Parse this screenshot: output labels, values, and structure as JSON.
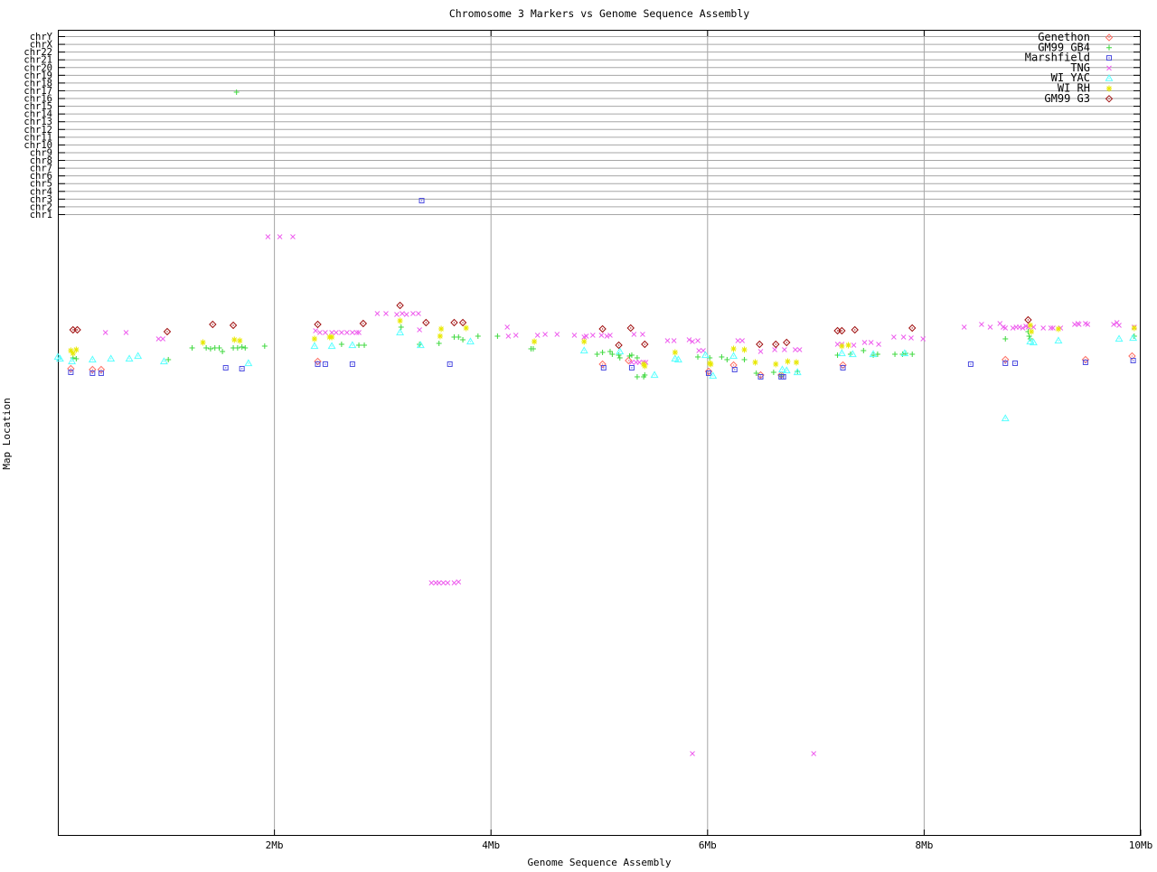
{
  "chart_data": {
    "type": "scatter",
    "title": "Chromosome 3 Markers vs Genome Sequence Assembly",
    "xlabel": "Genome Sequence Assembly",
    "ylabel": "Map Location",
    "x_unit": "Mb",
    "xlim": [
      0,
      10
    ],
    "x_ticks": [
      {
        "label": "2Mb",
        "mb": 2
      },
      {
        "label": "4Mb",
        "mb": 4
      },
      {
        "label": "6Mb",
        "mb": 6
      },
      {
        "label": "8Mb",
        "mb": 8
      },
      {
        "label": "10Mb",
        "mb": 10
      }
    ],
    "y_tick_labels": [
      "chrY",
      "chrX",
      "chr22",
      "chr21",
      "chr20",
      "chr19",
      "chr18",
      "chr17",
      "chr16",
      "chr15",
      "chr14",
      "chr13",
      "chr12",
      "chr11",
      "chr10",
      "chr9",
      "chr8",
      "chr7",
      "chr6",
      "chr5",
      "chr4",
      "chr3",
      "chr2",
      "chr1"
    ],
    "grid": true,
    "legend_position": "top-right-inside",
    "y_note": "y values are vertical screen pixel positions; the map-location scale has no numeric labels in the source image",
    "colors": {
      "background": "#ffffff",
      "grid": "#a6a6a6",
      "axis": "#000000",
      "text": "#000000"
    },
    "series": [
      {
        "name": "Genethon",
        "color": "#ff6e63",
        "marker": "diamond",
        "points": [
          [
            0.12,
            408
          ],
          [
            0.32,
            409
          ],
          [
            0.4,
            409
          ],
          [
            2.4,
            400
          ],
          [
            5.03,
            403
          ],
          [
            5.27,
            399
          ],
          [
            6.01,
            411
          ],
          [
            6.24,
            404
          ],
          [
            6.49,
            415
          ],
          [
            6.68,
            415
          ],
          [
            7.25,
            404
          ],
          [
            8.75,
            398
          ],
          [
            9.49,
            398
          ],
          [
            9.92,
            394
          ]
        ]
      },
      {
        "name": "GM99 GB4",
        "color": "#3ed83e",
        "marker": "plus",
        "points": [
          [
            0.14,
            396
          ],
          [
            0.17,
            397
          ],
          [
            1.02,
            398
          ],
          [
            1.24,
            385
          ],
          [
            1.37,
            385
          ],
          [
            1.41,
            386
          ],
          [
            1.45,
            385
          ],
          [
            1.49,
            385
          ],
          [
            1.52,
            389
          ],
          [
            1.62,
            385
          ],
          [
            1.65,
            102
          ],
          [
            1.66,
            385
          ],
          [
            1.7,
            384
          ],
          [
            1.73,
            385
          ],
          [
            1.91,
            383
          ],
          [
            2.62,
            381
          ],
          [
            2.78,
            382
          ],
          [
            2.83,
            382
          ],
          [
            3.17,
            362
          ],
          [
            3.34,
            381
          ],
          [
            3.52,
            380
          ],
          [
            3.66,
            373
          ],
          [
            3.7,
            373
          ],
          [
            3.74,
            376
          ],
          [
            3.88,
            372
          ],
          [
            4.06,
            372
          ],
          [
            4.37,
            386
          ],
          [
            4.39,
            386
          ],
          [
            4.98,
            392
          ],
          [
            5.03,
            390
          ],
          [
            5.1,
            389
          ],
          [
            5.12,
            392
          ],
          [
            5.18,
            393
          ],
          [
            5.19,
            396
          ],
          [
            5.28,
            394
          ],
          [
            5.3,
            393
          ],
          [
            5.35,
            396
          ],
          [
            5.35,
            417
          ],
          [
            5.41,
            417
          ],
          [
            5.42,
            415
          ],
          [
            5.91,
            395
          ],
          [
            6.02,
            396
          ],
          [
            6.13,
            395
          ],
          [
            6.18,
            398
          ],
          [
            6.34,
            398
          ],
          [
            6.45,
            413
          ],
          [
            6.61,
            412
          ],
          [
            6.68,
            416
          ],
          [
            6.83,
            411
          ],
          [
            7.2,
            393
          ],
          [
            7.32,
            392
          ],
          [
            7.44,
            388
          ],
          [
            7.53,
            393
          ],
          [
            7.57,
            392
          ],
          [
            7.73,
            392
          ],
          [
            7.8,
            392
          ],
          [
            7.83,
            391
          ],
          [
            7.89,
            392
          ],
          [
            8.75,
            375
          ],
          [
            8.96,
            367
          ],
          [
            8.97,
            372
          ],
          [
            8.98,
            375
          ],
          [
            9.94,
            372
          ]
        ]
      },
      {
        "name": "Marshfield",
        "color": "#4d4de0",
        "marker": "box",
        "points": [
          [
            0.12,
            412
          ],
          [
            0.32,
            413
          ],
          [
            0.4,
            413
          ],
          [
            1.55,
            407
          ],
          [
            1.7,
            408
          ],
          [
            2.4,
            403
          ],
          [
            2.47,
            403
          ],
          [
            2.72,
            403
          ],
          [
            3.36,
            222
          ],
          [
            3.62,
            403
          ],
          [
            5.04,
            407
          ],
          [
            5.3,
            407
          ],
          [
            6.01,
            413
          ],
          [
            6.25,
            409
          ],
          [
            6.49,
            417
          ],
          [
            6.68,
            417
          ],
          [
            6.7,
            417
          ],
          [
            7.25,
            407
          ],
          [
            8.43,
            403
          ],
          [
            8.75,
            402
          ],
          [
            8.84,
            402
          ],
          [
            9.49,
            401
          ],
          [
            9.93,
            399
          ]
        ]
      },
      {
        "name": "TNG",
        "color": "#ee5fee",
        "marker": "cross",
        "points": [
          [
            0.44,
            368
          ],
          [
            0.63,
            368
          ],
          [
            0.93,
            375
          ],
          [
            0.97,
            375
          ],
          [
            1.94,
            262
          ],
          [
            2.05,
            262
          ],
          [
            2.17,
            262
          ],
          [
            2.38,
            366
          ],
          [
            2.42,
            368
          ],
          [
            2.47,
            368
          ],
          [
            2.53,
            368
          ],
          [
            2.57,
            368
          ],
          [
            2.62,
            368
          ],
          [
            2.67,
            368
          ],
          [
            2.72,
            368
          ],
          [
            2.76,
            368
          ],
          [
            2.78,
            368
          ],
          [
            2.95,
            347
          ],
          [
            3.03,
            347
          ],
          [
            3.13,
            348
          ],
          [
            3.18,
            347
          ],
          [
            3.22,
            348
          ],
          [
            3.28,
            347
          ],
          [
            3.33,
            347
          ],
          [
            3.34,
            365
          ],
          [
            3.45,
            645
          ],
          [
            3.49,
            645
          ],
          [
            3.52,
            645
          ],
          [
            3.56,
            645
          ],
          [
            3.6,
            645
          ],
          [
            3.66,
            645
          ],
          [
            3.7,
            644
          ],
          [
            4.15,
            362
          ],
          [
            4.16,
            372
          ],
          [
            4.23,
            371
          ],
          [
            4.43,
            371
          ],
          [
            4.5,
            370
          ],
          [
            4.61,
            370
          ],
          [
            4.77,
            371
          ],
          [
            4.86,
            373
          ],
          [
            4.88,
            372
          ],
          [
            4.94,
            371
          ],
          [
            5.02,
            371
          ],
          [
            5.07,
            372
          ],
          [
            5.1,
            371
          ],
          [
            5.3,
            401
          ],
          [
            5.32,
            370
          ],
          [
            5.34,
            401
          ],
          [
            5.37,
            401
          ],
          [
            5.4,
            370
          ],
          [
            5.41,
            401
          ],
          [
            5.43,
            401
          ],
          [
            5.63,
            377
          ],
          [
            5.69,
            377
          ],
          [
            5.83,
            376
          ],
          [
            5.86,
            378
          ],
          [
            5.86,
            834
          ],
          [
            5.91,
            377
          ],
          [
            5.92,
            388
          ],
          [
            5.96,
            388
          ],
          [
            6.28,
            377
          ],
          [
            6.32,
            377
          ],
          [
            6.49,
            389
          ],
          [
            6.62,
            387
          ],
          [
            6.71,
            387
          ],
          [
            6.81,
            387
          ],
          [
            6.85,
            387
          ],
          [
            6.98,
            834
          ],
          [
            7.2,
            381
          ],
          [
            7.24,
            381
          ],
          [
            7.35,
            382
          ],
          [
            7.45,
            379
          ],
          [
            7.51,
            379
          ],
          [
            7.58,
            381
          ],
          [
            7.72,
            373
          ],
          [
            7.81,
            373
          ],
          [
            7.88,
            374
          ],
          [
            7.99,
            375
          ],
          [
            8.37,
            362
          ],
          [
            8.53,
            359
          ],
          [
            8.61,
            362
          ],
          [
            8.7,
            358
          ],
          [
            8.73,
            362
          ],
          [
            8.75,
            363
          ],
          [
            8.82,
            363
          ],
          [
            8.85,
            362
          ],
          [
            8.88,
            362
          ],
          [
            8.91,
            363
          ],
          [
            8.94,
            361
          ],
          [
            8.96,
            362
          ],
          [
            9.01,
            362
          ],
          [
            9.1,
            363
          ],
          [
            9.17,
            363
          ],
          [
            9.19,
            363
          ],
          [
            9.26,
            363
          ],
          [
            9.39,
            359
          ],
          [
            9.42,
            358
          ],
          [
            9.43,
            359
          ],
          [
            9.49,
            358
          ],
          [
            9.51,
            359
          ],
          [
            9.75,
            359
          ],
          [
            9.78,
            357
          ],
          [
            9.8,
            360
          ],
          [
            9.94,
            362
          ]
        ]
      },
      {
        "name": "WI YAC",
        "color": "#55ffff",
        "marker": "triangle",
        "points": [
          [
            0.0,
            395
          ],
          [
            0.02,
            397
          ],
          [
            0.13,
            400
          ],
          [
            0.32,
            398
          ],
          [
            0.49,
            397
          ],
          [
            0.66,
            397
          ],
          [
            0.74,
            394
          ],
          [
            0.98,
            400
          ],
          [
            1.76,
            402
          ],
          [
            2.37,
            383
          ],
          [
            2.53,
            383
          ],
          [
            2.72,
            382
          ],
          [
            3.16,
            368
          ],
          [
            3.35,
            382
          ],
          [
            3.81,
            378
          ],
          [
            4.86,
            388
          ],
          [
            5.19,
            389
          ],
          [
            5.51,
            415
          ],
          [
            5.7,
            397
          ],
          [
            5.73,
            398
          ],
          [
            5.98,
            393
          ],
          [
            6.05,
            416
          ],
          [
            6.24,
            394
          ],
          [
            6.69,
            409
          ],
          [
            6.73,
            410
          ],
          [
            6.83,
            412
          ],
          [
            7.24,
            391
          ],
          [
            7.34,
            392
          ],
          [
            7.53,
            392
          ],
          [
            7.82,
            391
          ],
          [
            8.75,
            463
          ],
          [
            8.98,
            378
          ],
          [
            9.01,
            379
          ],
          [
            9.24,
            377
          ],
          [
            9.8,
            375
          ],
          [
            9.93,
            374
          ]
        ]
      },
      {
        "name": "WI RH",
        "color": "#e8e800",
        "marker": "asterisk",
        "points": [
          [
            0.12,
            388
          ],
          [
            0.14,
            391
          ],
          [
            0.17,
            387
          ],
          [
            1.34,
            379
          ],
          [
            1.63,
            376
          ],
          [
            1.68,
            377
          ],
          [
            2.37,
            375
          ],
          [
            2.51,
            373
          ],
          [
            2.53,
            373
          ],
          [
            3.16,
            355
          ],
          [
            3.53,
            372
          ],
          [
            3.54,
            364
          ],
          [
            3.77,
            363
          ],
          [
            4.4,
            378
          ],
          [
            4.86,
            378
          ],
          [
            5.41,
            403
          ],
          [
            5.42,
            405
          ],
          [
            5.7,
            390
          ],
          [
            6.02,
            402
          ],
          [
            6.03,
            403
          ],
          [
            6.24,
            386
          ],
          [
            6.34,
            387
          ],
          [
            6.44,
            401
          ],
          [
            6.63,
            403
          ],
          [
            6.74,
            400
          ],
          [
            6.82,
            401
          ],
          [
            7.24,
            383
          ],
          [
            7.3,
            382
          ],
          [
            8.98,
            360
          ],
          [
            8.99,
            367
          ],
          [
            9.24,
            364
          ],
          [
            9.94,
            363
          ]
        ]
      },
      {
        "name": "GM99 G3",
        "color": "#a01010",
        "marker": "diamond",
        "points": [
          [
            0.14,
            365
          ],
          [
            0.18,
            365
          ],
          [
            1.01,
            367
          ],
          [
            1.43,
            359
          ],
          [
            1.62,
            360
          ],
          [
            2.4,
            359
          ],
          [
            2.82,
            358
          ],
          [
            3.16,
            338
          ],
          [
            3.4,
            357
          ],
          [
            3.66,
            357
          ],
          [
            3.74,
            357
          ],
          [
            5.03,
            364
          ],
          [
            5.18,
            382
          ],
          [
            5.29,
            363
          ],
          [
            5.42,
            381
          ],
          [
            6.48,
            381
          ],
          [
            6.63,
            381
          ],
          [
            6.73,
            379
          ],
          [
            7.2,
            366
          ],
          [
            7.24,
            366
          ],
          [
            7.36,
            365
          ],
          [
            7.89,
            363
          ],
          [
            8.96,
            354
          ]
        ]
      }
    ]
  }
}
